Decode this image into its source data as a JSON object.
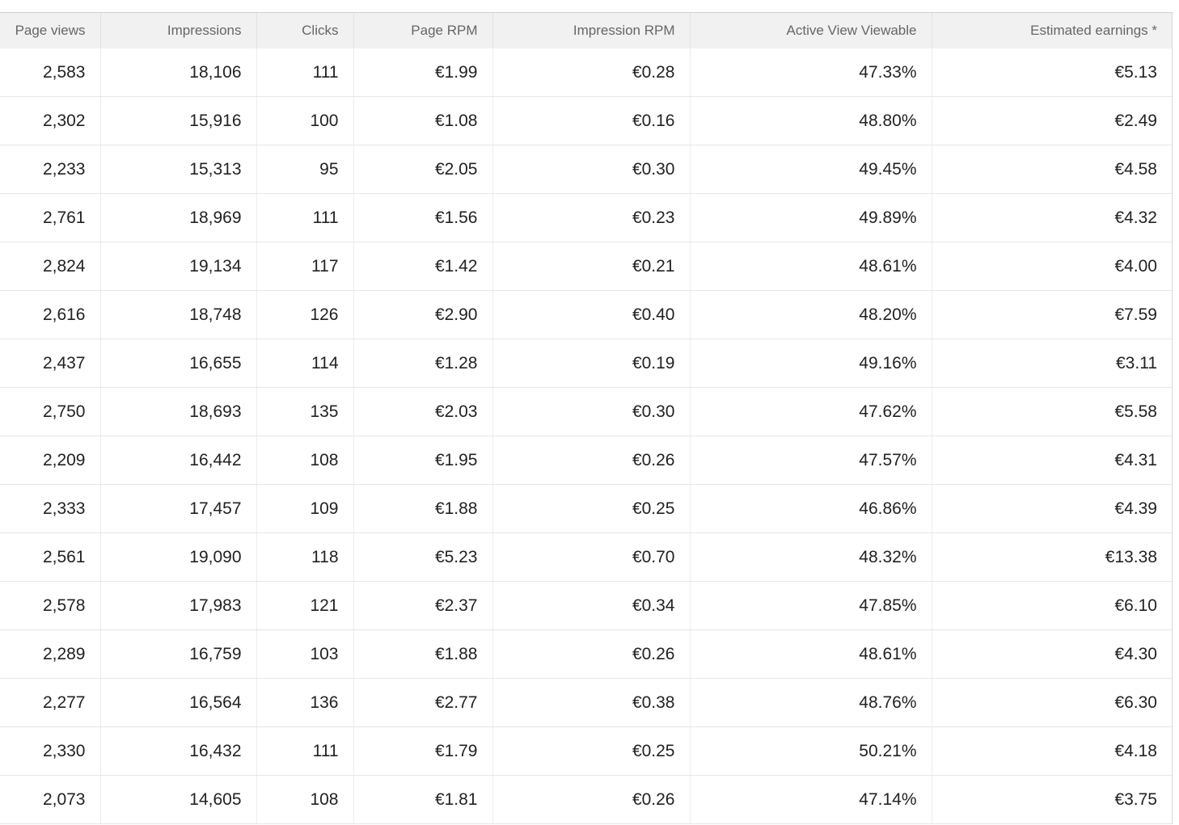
{
  "table": {
    "headers": [
      "Page views",
      "Impressions",
      "Clicks",
      "Page RPM",
      "Impression RPM",
      "Active View Viewable",
      "Estimated earnings *"
    ],
    "rows": [
      [
        "2,583",
        "18,106",
        "111",
        "€1.99",
        "€0.28",
        "47.33%",
        "€5.13"
      ],
      [
        "2,302",
        "15,916",
        "100",
        "€1.08",
        "€0.16",
        "48.80%",
        "€2.49"
      ],
      [
        "2,233",
        "15,313",
        "95",
        "€2.05",
        "€0.30",
        "49.45%",
        "€4.58"
      ],
      [
        "2,761",
        "18,969",
        "111",
        "€1.56",
        "€0.23",
        "49.89%",
        "€4.32"
      ],
      [
        "2,824",
        "19,134",
        "117",
        "€1.42",
        "€0.21",
        "48.61%",
        "€4.00"
      ],
      [
        "2,616",
        "18,748",
        "126",
        "€2.90",
        "€0.40",
        "48.20%",
        "€7.59"
      ],
      [
        "2,437",
        "16,655",
        "114",
        "€1.28",
        "€0.19",
        "49.16%",
        "€3.11"
      ],
      [
        "2,750",
        "18,693",
        "135",
        "€2.03",
        "€0.30",
        "47.62%",
        "€5.58"
      ],
      [
        "2,209",
        "16,442",
        "108",
        "€1.95",
        "€0.26",
        "47.57%",
        "€4.31"
      ],
      [
        "2,333",
        "17,457",
        "109",
        "€1.88",
        "€0.25",
        "46.86%",
        "€4.39"
      ],
      [
        "2,561",
        "19,090",
        "118",
        "€5.23",
        "€0.70",
        "48.32%",
        "€13.38"
      ],
      [
        "2,578",
        "17,983",
        "121",
        "€2.37",
        "€0.34",
        "47.85%",
        "€6.10"
      ],
      [
        "2,289",
        "16,759",
        "103",
        "€1.88",
        "€0.26",
        "48.61%",
        "€4.30"
      ],
      [
        "2,277",
        "16,564",
        "136",
        "€2.77",
        "€0.38",
        "48.76%",
        "€6.30"
      ],
      [
        "2,330",
        "16,432",
        "111",
        "€1.79",
        "€0.25",
        "50.21%",
        "€4.18"
      ],
      [
        "2,073",
        "14,605",
        "108",
        "€1.81",
        "€0.26",
        "47.14%",
        "€3.75"
      ]
    ]
  }
}
